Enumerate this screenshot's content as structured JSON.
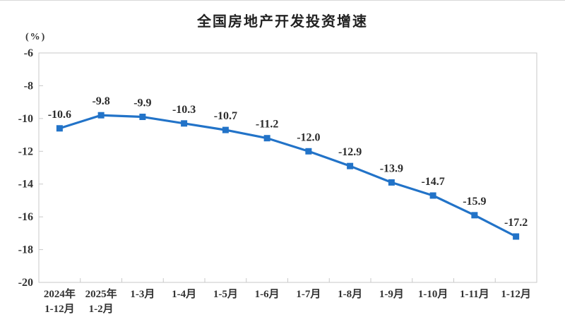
{
  "chart_data": {
    "type": "line",
    "title": "全国房地产开发投资增速",
    "unit_label": "(%)",
    "categories": [
      [
        "2024年",
        "1-12月"
      ],
      [
        "2025年",
        "1-2月"
      ],
      [
        "1-3月"
      ],
      [
        "1-4月"
      ],
      [
        "1-5月"
      ],
      [
        "1-6月"
      ],
      [
        "1-7月"
      ],
      [
        "1-8月"
      ],
      [
        "1-9月"
      ],
      [
        "1-10月"
      ],
      [
        "1-11月"
      ],
      [
        "1-12月"
      ]
    ],
    "series": [
      {
        "name": "全国房地产开发投资增速",
        "values": [
          -10.6,
          -9.8,
          -9.9,
          -10.3,
          -10.7,
          -11.2,
          -12.0,
          -12.9,
          -13.9,
          -14.7,
          -15.9,
          -17.2
        ],
        "data_labels": [
          "-10.6",
          "-9.8",
          "-9.9",
          "-10.3",
          "-10.7",
          "-11.2",
          "-12.0",
          "-12.9",
          "-13.9",
          "-14.7",
          "-15.9",
          "-17.2"
        ]
      }
    ],
    "y_axis": {
      "ticks": [
        -6,
        -8,
        -10,
        -12,
        -14,
        -16,
        -18,
        -20
      ],
      "tick_labels": [
        "-6",
        "-8",
        "-10",
        "-12",
        "-14",
        "-16",
        "-18",
        "-20"
      ],
      "range": [
        -20,
        -6
      ]
    },
    "grid": false,
    "legend": "none",
    "marker": "square",
    "colors": {
      "line": "#2273C8",
      "marker": "#2273C8",
      "axis": "#c9c9c9",
      "tick": "#c9c9c9",
      "label_text": "#2b2b2b",
      "axis_text": "#333333",
      "title_text": "#222222"
    }
  }
}
